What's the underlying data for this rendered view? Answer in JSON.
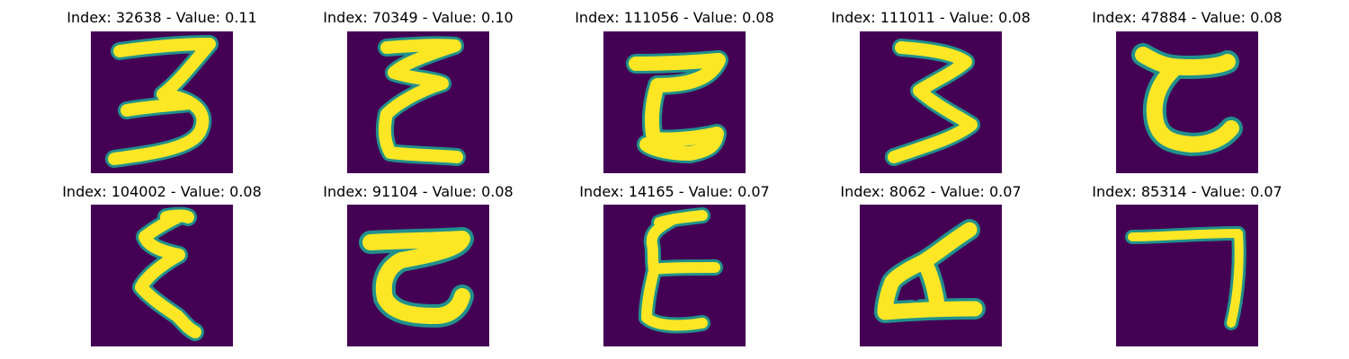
{
  "panels": [
    {
      "title": "Index: 32638 - Value: 0.11",
      "glyph": "3-like handwritten character"
    },
    {
      "title": "Index: 70349 - Value: 0.10",
      "glyph": "epsilon-like handwritten character"
    },
    {
      "title": "Index: 111056 - Value: 0.08",
      "glyph": "reversed-C-like handwritten character"
    },
    {
      "title": "Index: 111011 - Value: 0.08",
      "glyph": "3-like handwritten character"
    },
    {
      "title": "Index: 47884 - Value: 0.08",
      "glyph": "C-like handwritten character"
    },
    {
      "title": "Index: 104002 - Value: 0.08",
      "glyph": "epsilon-like handwritten character"
    },
    {
      "title": "Index: 91104 - Value: 0.08",
      "glyph": "C-like handwritten character"
    },
    {
      "title": "Index: 14165 - Value: 0.07",
      "glyph": "epsilon-like handwritten character"
    },
    {
      "title": "Index: 8062 - Value: 0.07",
      "glyph": "L-like handwritten character"
    },
    {
      "title": "Index: 85314 - Value: 0.07",
      "glyph": "7-like handwritten character"
    }
  ],
  "colors": {
    "background": "#440154",
    "stroke": "#fde725",
    "edge": "#21918c"
  }
}
